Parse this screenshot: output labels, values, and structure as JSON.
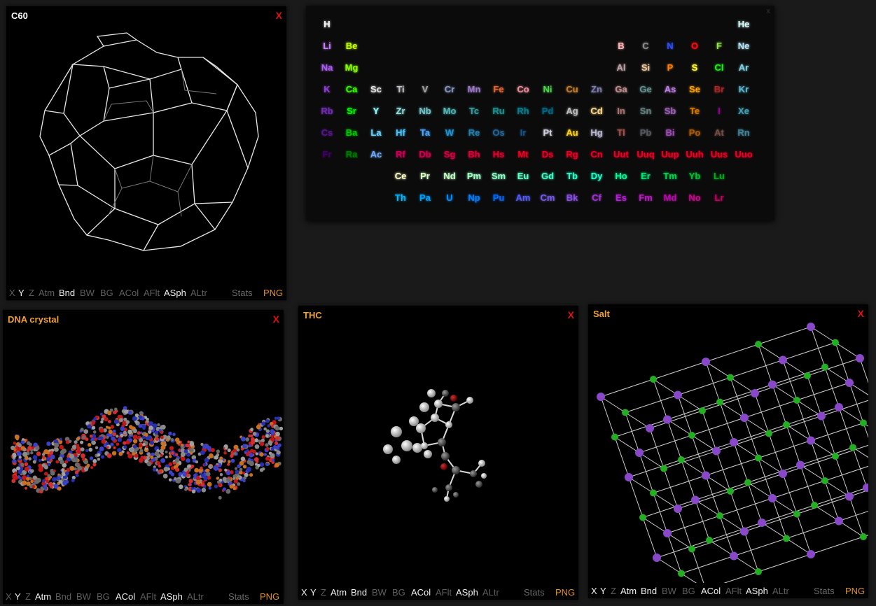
{
  "panels": [
    {
      "id": "c60",
      "title": "C60",
      "title_color": "#ffffff",
      "close": "X",
      "toolbar": [
        [
          "X",
          "off"
        ],
        [
          "Y",
          "on"
        ],
        [
          "Z",
          "off"
        ],
        [
          "Atm",
          "off"
        ],
        [
          "Bnd",
          "on"
        ],
        [
          "BW",
          "off"
        ],
        [
          "BG",
          "off"
        ],
        [
          "ACol",
          "off"
        ],
        [
          "AFlt",
          "off"
        ],
        [
          "ASph",
          "on"
        ],
        [
          "ALtr",
          "off"
        ]
      ]
    },
    {
      "id": "dna",
      "title": "DNA crystal",
      "title_color": "#f0a030",
      "close": "X",
      "toolbar": [
        [
          "X",
          "off"
        ],
        [
          "Y",
          "on"
        ],
        [
          "Z",
          "off"
        ],
        [
          "Atm",
          "on"
        ],
        [
          "Bnd",
          "off"
        ],
        [
          "BW",
          "off"
        ],
        [
          "BG",
          "off"
        ],
        [
          "ACol",
          "on"
        ],
        [
          "AFlt",
          "off"
        ],
        [
          "ASph",
          "on"
        ],
        [
          "ALtr",
          "off"
        ]
      ]
    },
    {
      "id": "thc",
      "title": "THC",
      "title_color": "#f0a030",
      "close": "X",
      "toolbar": [
        [
          "X",
          "on"
        ],
        [
          "Y",
          "on"
        ],
        [
          "Z",
          "off"
        ],
        [
          "Atm",
          "on"
        ],
        [
          "Bnd",
          "on"
        ],
        [
          "BW",
          "off"
        ],
        [
          "BG",
          "off"
        ],
        [
          "ACol",
          "on"
        ],
        [
          "AFlt",
          "off"
        ],
        [
          "ASph",
          "on"
        ],
        [
          "ALtr",
          "off"
        ]
      ]
    },
    {
      "id": "salt",
      "title": "Salt",
      "title_color": "#f0a030",
      "close": "X",
      "toolbar": [
        [
          "X",
          "on"
        ],
        [
          "Y",
          "on"
        ],
        [
          "Z",
          "off"
        ],
        [
          "Atm",
          "on"
        ],
        [
          "Bnd",
          "on"
        ],
        [
          "BW",
          "off"
        ],
        [
          "BG",
          "off"
        ],
        [
          "ACol",
          "on"
        ],
        [
          "AFlt",
          "off"
        ],
        [
          "ASph",
          "on"
        ],
        [
          "ALtr",
          "off"
        ]
      ]
    }
  ],
  "stats_label": "Stats",
  "png_label": "PNG",
  "periodic_table": {
    "close": "x",
    "elements": [
      [
        "H",
        1,
        1,
        "#ffffff"
      ],
      [
        "He",
        1,
        18,
        "#d9ffff"
      ],
      [
        "Li",
        2,
        1,
        "#cc80ff"
      ],
      [
        "Be",
        2,
        2,
        "#c2ff00"
      ],
      [
        "B",
        2,
        13,
        "#ffb5b5"
      ],
      [
        "C",
        2,
        14,
        "#909090"
      ],
      [
        "N",
        2,
        15,
        "#3050f8"
      ],
      [
        "O",
        2,
        16,
        "#ff0d0d"
      ],
      [
        "F",
        2,
        17,
        "#90e050"
      ],
      [
        "Ne",
        2,
        18,
        "#b3e3f5"
      ],
      [
        "Na",
        3,
        1,
        "#ab5cf2"
      ],
      [
        "Mg",
        3,
        2,
        "#8aff00"
      ],
      [
        "Al",
        3,
        13,
        "#bfa6a6"
      ],
      [
        "Si",
        3,
        14,
        "#f0c8a0"
      ],
      [
        "P",
        3,
        15,
        "#ff8000"
      ],
      [
        "S",
        3,
        16,
        "#ffff30"
      ],
      [
        "Cl",
        3,
        17,
        "#1ff01f"
      ],
      [
        "Ar",
        3,
        18,
        "#80d1e3"
      ],
      [
        "K",
        4,
        1,
        "#8f40d4"
      ],
      [
        "Ca",
        4,
        2,
        "#3dff00"
      ],
      [
        "Sc",
        4,
        3,
        "#e6e6e6"
      ],
      [
        "Ti",
        4,
        4,
        "#bfc2c7"
      ],
      [
        "V",
        4,
        5,
        "#a6a6ab"
      ],
      [
        "Cr",
        4,
        6,
        "#8a99c7"
      ],
      [
        "Mn",
        4,
        7,
        "#9c7ac7"
      ],
      [
        "Fe",
        4,
        8,
        "#e06633"
      ],
      [
        "Co",
        4,
        9,
        "#f090a0"
      ],
      [
        "Ni",
        4,
        10,
        "#50d050"
      ],
      [
        "Cu",
        4,
        11,
        "#c88033"
      ],
      [
        "Zn",
        4,
        12,
        "#7d80b0"
      ],
      [
        "Ga",
        4,
        13,
        "#c28f8f"
      ],
      [
        "Ge",
        4,
        14,
        "#668f8f"
      ],
      [
        "As",
        4,
        15,
        "#bd80e3"
      ],
      [
        "Se",
        4,
        16,
        "#ffa100"
      ],
      [
        "Br",
        4,
        17,
        "#a62929"
      ],
      [
        "Kr",
        4,
        18,
        "#5cb8d1"
      ],
      [
        "Rb",
        5,
        1,
        "#702eb0"
      ],
      [
        "Sr",
        5,
        2,
        "#00ff00"
      ],
      [
        "Y",
        5,
        3,
        "#94ffff"
      ],
      [
        "Zr",
        5,
        4,
        "#94e0e0"
      ],
      [
        "Nb",
        5,
        5,
        "#73c2c9"
      ],
      [
        "Mo",
        5,
        6,
        "#54b5b5"
      ],
      [
        "Tc",
        5,
        7,
        "#3b9e9e"
      ],
      [
        "Ru",
        5,
        8,
        "#248f8f"
      ],
      [
        "Rh",
        5,
        9,
        "#0a7d8c"
      ],
      [
        "Pd",
        5,
        10,
        "#006985"
      ],
      [
        "Ag",
        5,
        11,
        "#c0c0c0"
      ],
      [
        "Cd",
        5,
        12,
        "#ffd98f"
      ],
      [
        "In",
        5,
        13,
        "#a67573"
      ],
      [
        "Sn",
        5,
        14,
        "#668080"
      ],
      [
        "Sb",
        5,
        15,
        "#9e63b5"
      ],
      [
        "Te",
        5,
        16,
        "#d47a00"
      ],
      [
        "I",
        5,
        17,
        "#940094"
      ],
      [
        "Xe",
        5,
        18,
        "#429eb0"
      ],
      [
        "Cs",
        6,
        1,
        "#57178f"
      ],
      [
        "Ba",
        6,
        2,
        "#00c900"
      ],
      [
        "La",
        6,
        3,
        "#70d4ff"
      ],
      [
        "Hf",
        6,
        4,
        "#4dc2ff"
      ],
      [
        "Ta",
        6,
        5,
        "#4da6ff"
      ],
      [
        "W",
        6,
        6,
        "#2194d6"
      ],
      [
        "Re",
        6,
        7,
        "#267dab"
      ],
      [
        "Os",
        6,
        8,
        "#266696"
      ],
      [
        "Ir",
        6,
        9,
        "#175487"
      ],
      [
        "Pt",
        6,
        10,
        "#d0d0e0"
      ],
      [
        "Au",
        6,
        11,
        "#ffd123"
      ],
      [
        "Hg",
        6,
        12,
        "#b8b8d0"
      ],
      [
        "Tl",
        6,
        13,
        "#a6544d"
      ],
      [
        "Pb",
        6,
        14,
        "#575961"
      ],
      [
        "Bi",
        6,
        15,
        "#9e4fb5"
      ],
      [
        "Po",
        6,
        16,
        "#ab5c00"
      ],
      [
        "At",
        6,
        17,
        "#754f45"
      ],
      [
        "Rn",
        6,
        18,
        "#428296"
      ],
      [
        "Fr",
        7,
        1,
        "#420066"
      ],
      [
        "Ra",
        7,
        2,
        "#007d00"
      ],
      [
        "Ac",
        7,
        3,
        "#70abfa"
      ],
      [
        "Rf",
        7,
        4,
        "#cc0059"
      ],
      [
        "Db",
        7,
        5,
        "#d1004f"
      ],
      [
        "Sg",
        7,
        6,
        "#d90045"
      ],
      [
        "Bh",
        7,
        7,
        "#e00038"
      ],
      [
        "Hs",
        7,
        8,
        "#e6002e"
      ],
      [
        "Mt",
        7,
        9,
        "#eb0026"
      ],
      [
        "Ds",
        7,
        10,
        "#eb0026"
      ],
      [
        "Rg",
        7,
        11,
        "#eb0026"
      ],
      [
        "Cn",
        7,
        12,
        "#eb0026"
      ],
      [
        "Uut",
        7,
        13,
        "#eb0026"
      ],
      [
        "Uuq",
        7,
        14,
        "#eb0026"
      ],
      [
        "Uup",
        7,
        15,
        "#eb0026"
      ],
      [
        "Uuh",
        7,
        16,
        "#eb0026"
      ],
      [
        "Uus",
        7,
        17,
        "#eb0026"
      ],
      [
        "Uuo",
        7,
        18,
        "#eb0026"
      ],
      [
        "Ce",
        8,
        4,
        "#ffffc7"
      ],
      [
        "Pr",
        8,
        5,
        "#d9ffc7"
      ],
      [
        "Nd",
        8,
        6,
        "#c7ffc7"
      ],
      [
        "Pm",
        8,
        7,
        "#a3ffc7"
      ],
      [
        "Sm",
        8,
        8,
        "#8fffc7"
      ],
      [
        "Eu",
        8,
        9,
        "#61ffc7"
      ],
      [
        "Gd",
        8,
        10,
        "#45ffc7"
      ],
      [
        "Tb",
        8,
        11,
        "#30ffc7"
      ],
      [
        "Dy",
        8,
        12,
        "#1fffc7"
      ],
      [
        "Ho",
        8,
        13,
        "#00ff9c"
      ],
      [
        "Er",
        8,
        14,
        "#00e675"
      ],
      [
        "Tm",
        8,
        15,
        "#00d452"
      ],
      [
        "Yb",
        8,
        16,
        "#00bf38"
      ],
      [
        "Lu",
        8,
        17,
        "#00ab24"
      ],
      [
        "Th",
        9,
        4,
        "#00baff"
      ],
      [
        "Pa",
        9,
        5,
        "#00a1ff"
      ],
      [
        "U",
        9,
        6,
        "#008fff"
      ],
      [
        "Np",
        9,
        7,
        "#0080ff"
      ],
      [
        "Pu",
        9,
        8,
        "#006bff"
      ],
      [
        "Am",
        9,
        9,
        "#545cf2"
      ],
      [
        "Cm",
        9,
        10,
        "#785ce3"
      ],
      [
        "Bk",
        9,
        11,
        "#8a4fe3"
      ],
      [
        "Cf",
        9,
        12,
        "#a136d4"
      ],
      [
        "Es",
        9,
        13,
        "#b31fd4"
      ],
      [
        "Fm",
        9,
        14,
        "#b31fba"
      ],
      [
        "Md",
        9,
        15,
        "#b30da6"
      ],
      [
        "No",
        9,
        16,
        "#bd0d87"
      ],
      [
        "Lr",
        9,
        17,
        "#c70066"
      ]
    ]
  }
}
